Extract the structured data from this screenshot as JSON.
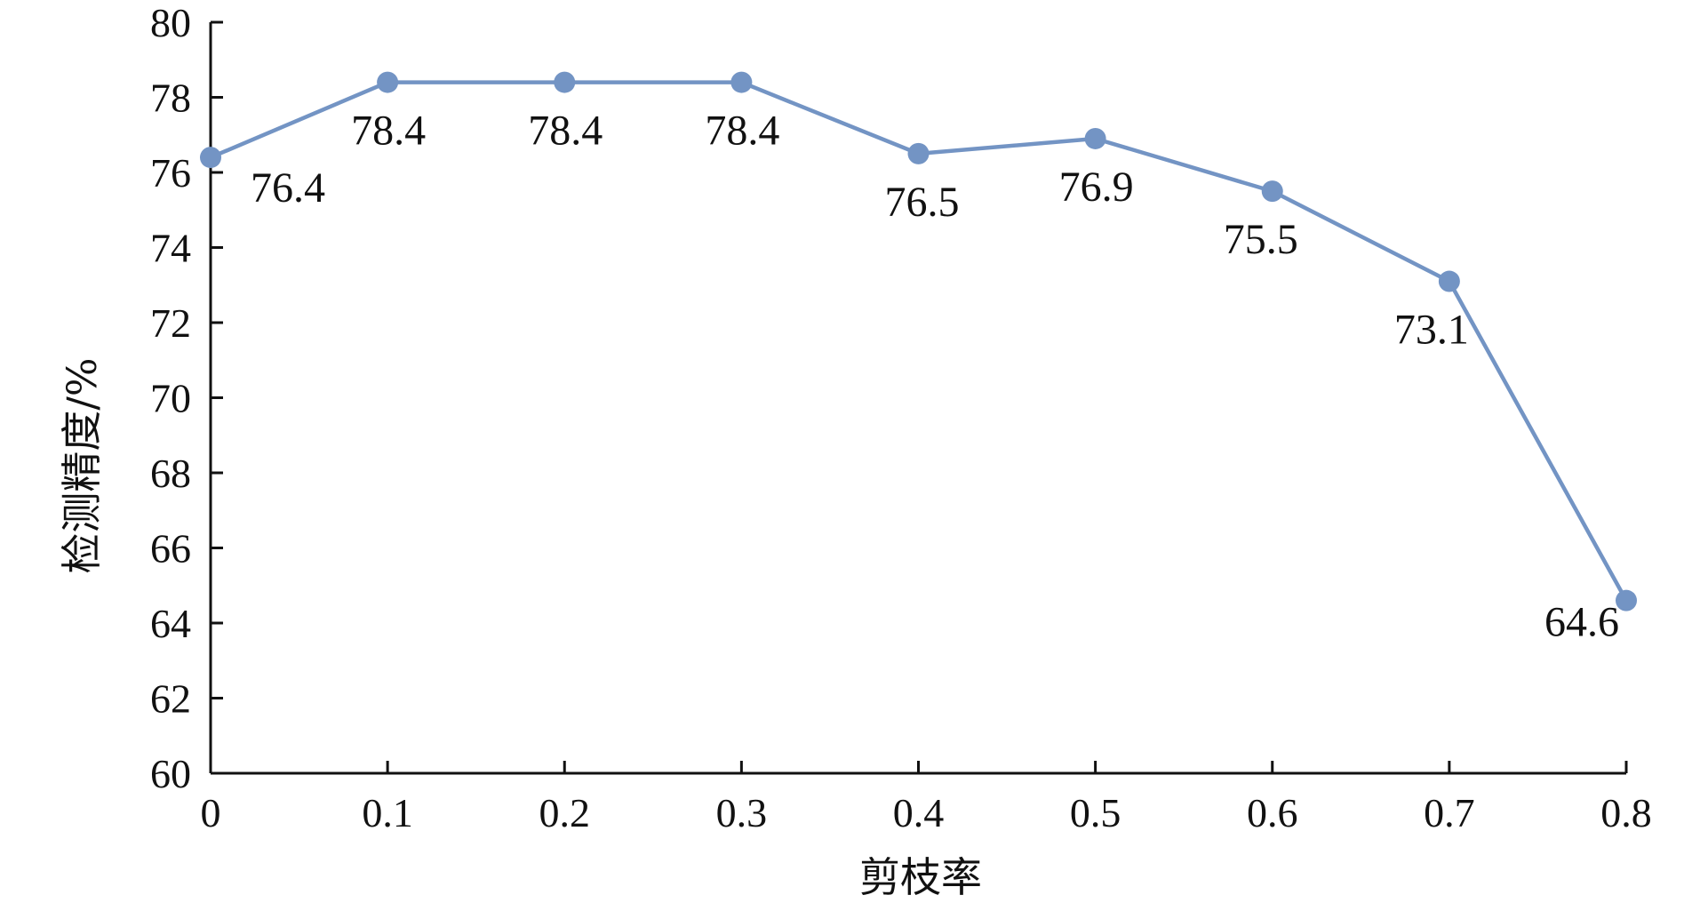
{
  "chart_data": {
    "type": "line",
    "title": "",
    "xlabel": "剪枝率",
    "ylabel": "检测精度/%",
    "x": [
      0,
      0.1,
      0.2,
      0.3,
      0.4,
      0.5,
      0.6,
      0.7,
      0.8
    ],
    "x_tick_labels": [
      "0",
      "0.1",
      "0.2",
      "0.3",
      "0.4",
      "0.5",
      "0.6",
      "0.7",
      "0.8"
    ],
    "y_ticks": [
      60,
      62,
      64,
      66,
      68,
      70,
      72,
      74,
      76,
      78,
      80
    ],
    "y_tick_labels": [
      "60",
      "62",
      "64",
      "66",
      "68",
      "70",
      "72",
      "74",
      "76",
      "78",
      "80"
    ],
    "xlim": [
      0,
      0.8
    ],
    "ylim": [
      60,
      80
    ],
    "grid": false,
    "series": [
      {
        "values": [
          76.4,
          78.4,
          78.4,
          78.4,
          76.5,
          76.9,
          75.5,
          73.1,
          64.6
        ],
        "labels": [
          "76.4",
          "78.4",
          "78.4",
          "78.4",
          "76.5",
          "76.9",
          "75.5",
          "73.1",
          "64.6"
        ],
        "color": "#7394c4"
      }
    ]
  }
}
